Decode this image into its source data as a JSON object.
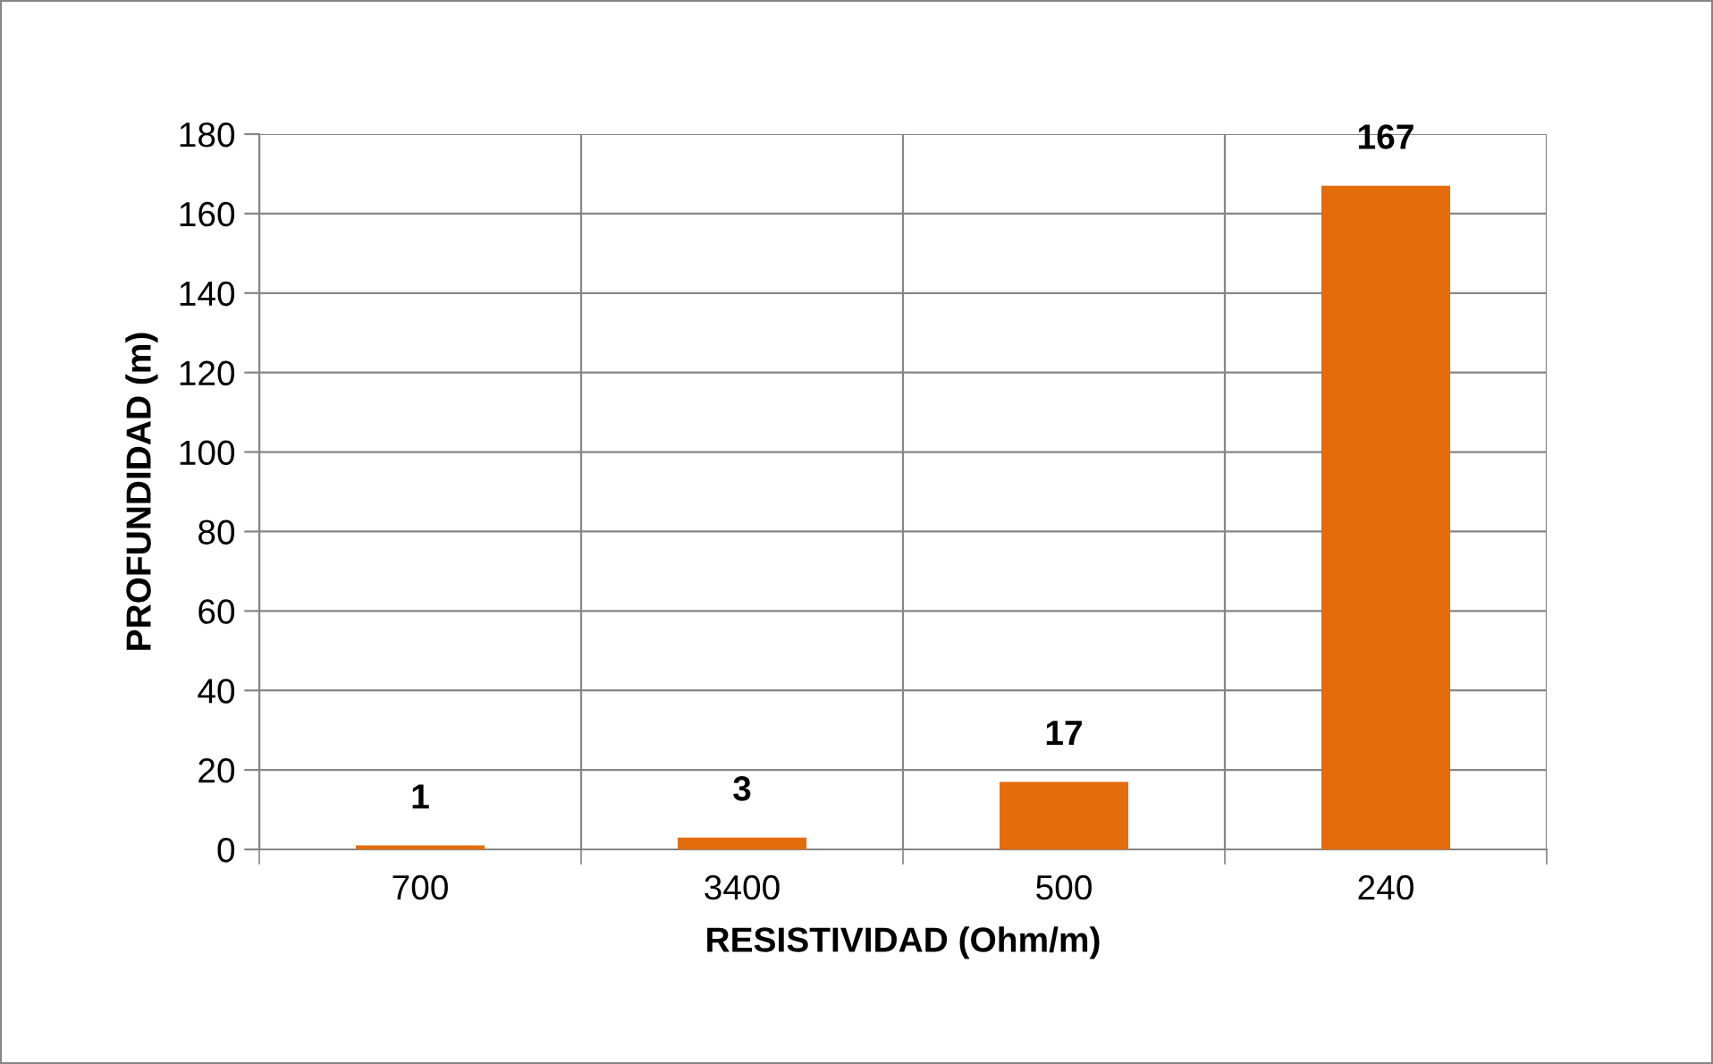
{
  "chart_data": {
    "type": "bar",
    "xlabel": "RESISTIVIDAD (Ohm/m)",
    "ylabel": "PROFUNDIDAD (m)",
    "categories": [
      "700",
      "3400",
      "500",
      "240"
    ],
    "values": [
      1,
      3,
      17,
      167
    ],
    "color": "#e46c0a",
    "ylim": [
      0,
      180
    ],
    "yticks": [
      0,
      20,
      40,
      60,
      80,
      100,
      120,
      140,
      160,
      180
    ],
    "grid": true,
    "data_labels": true
  }
}
